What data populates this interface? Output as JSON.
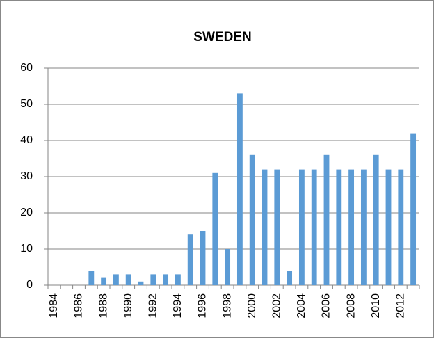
{
  "chart_data": {
    "type": "bar",
    "title": "SWEDEN",
    "categories": [
      "1984",
      null,
      "1986",
      null,
      "1988",
      null,
      "1990",
      null,
      "1992",
      null,
      "1994",
      null,
      "1996",
      null,
      "1998",
      null,
      "2000",
      null,
      "2002",
      null,
      "2004",
      null,
      "2006",
      null,
      "2008",
      null,
      "2010",
      null,
      "2012",
      null
    ],
    "values": [
      0,
      0,
      0,
      4,
      2,
      3,
      3,
      1,
      3,
      3,
      3,
      14,
      15,
      31,
      10,
      53,
      36,
      32,
      32,
      4,
      32,
      32,
      36,
      32,
      32,
      32,
      36,
      32,
      32,
      42
    ],
    "color": "#5b9bd5",
    "ylim": [
      0,
      60
    ],
    "yticks": [
      0,
      10,
      20,
      30,
      40,
      50,
      60
    ],
    "grid": true
  }
}
